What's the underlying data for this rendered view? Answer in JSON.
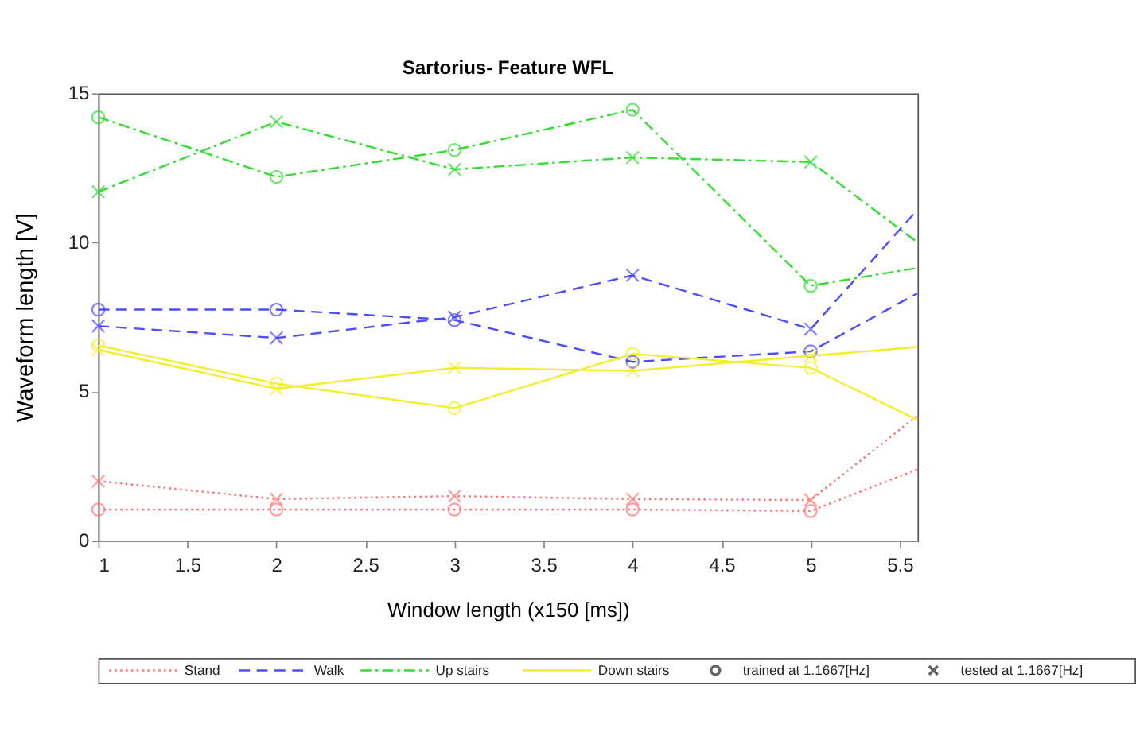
{
  "chart_data": {
    "type": "line",
    "title": "Sartorius- Feature WFL",
    "xlabel": "Window length (x150 [ms])",
    "ylabel": "Waveform length [V]",
    "x": [
      1,
      2,
      3,
      4,
      5,
      5.6
    ],
    "xlim": [
      1,
      5.6
    ],
    "xticks": [
      1,
      1.5,
      2,
      2.5,
      3,
      3.5,
      4,
      4.5,
      5,
      5.5
    ],
    "ylim": [
      0,
      15
    ],
    "yticks": [
      0,
      5,
      10,
      15
    ],
    "grid": false,
    "legend": "bottom",
    "series": [
      {
        "name": "Stand",
        "color": "#ff7373",
        "line_style": "dotted",
        "marker": "circle",
        "values": [
          1.05,
          1.05,
          1.05,
          1.05,
          1.0,
          2.4
        ]
      },
      {
        "color": "#ff7373",
        "line_style": "dotted",
        "marker": "cross",
        "values": [
          2.0,
          1.4,
          1.5,
          1.4,
          1.37,
          4.2
        ]
      },
      {
        "name": "Walk",
        "color": "#4d4dff",
        "line_style": "dashed",
        "marker": "circle",
        "values": [
          7.75,
          7.75,
          7.4,
          6.0,
          6.35,
          8.3
        ]
      },
      {
        "color": "#4d4dff",
        "line_style": "dashed",
        "marker": "cross",
        "values": [
          7.2,
          6.8,
          7.5,
          8.9,
          7.1,
          11.1
        ]
      },
      {
        "name": "Up stairs",
        "color": "#33dd33",
        "line_style": "dashdot",
        "marker": "circle",
        "values": [
          14.2,
          12.2,
          13.1,
          14.45,
          8.55,
          9.15
        ]
      },
      {
        "color": "#33dd33",
        "line_style": "dashdot",
        "marker": "cross",
        "values": [
          11.7,
          14.05,
          12.45,
          12.85,
          12.7,
          10.0
        ]
      },
      {
        "name": "Down stairs",
        "color": "#f2ee2e",
        "line_style": "solid",
        "marker": "circle",
        "values": [
          6.55,
          5.27,
          4.45,
          6.27,
          5.8,
          4.05
        ]
      },
      {
        "color": "#f2ee2e",
        "line_style": "solid",
        "marker": "cross",
        "values": [
          6.4,
          5.1,
          5.8,
          5.7,
          6.2,
          6.5
        ]
      }
    ],
    "annotations": [
      "trained at 1.1667[Hz]",
      "tested at 1.1667[Hz]"
    ]
  }
}
